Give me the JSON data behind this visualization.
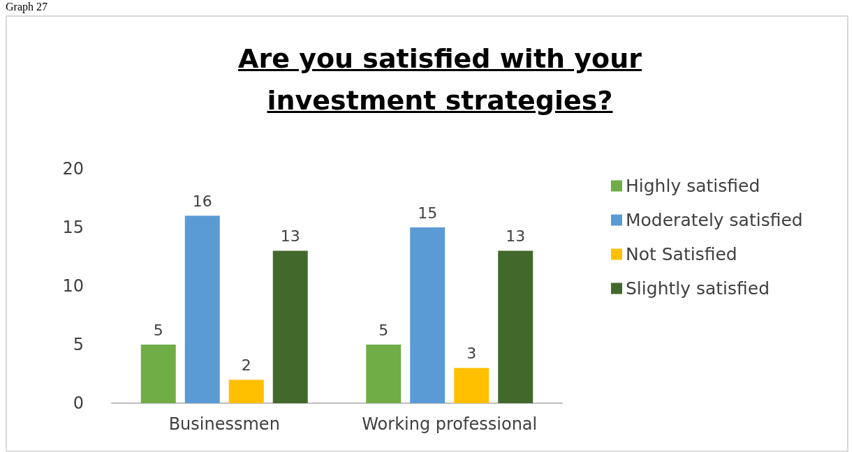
{
  "chart_data": {
    "type": "bar",
    "title": "Are you satisfied with your investment strategies?",
    "annotations": [
      "Graph 27"
    ],
    "categories": [
      "Businessmen",
      "Working professional"
    ],
    "series": [
      {
        "name": "Highly satisfied",
        "color": "#70ad47",
        "values": [
          5,
          5
        ]
      },
      {
        "name": "Moderately satisfied",
        "color": "#5b9bd5",
        "values": [
          16,
          15
        ]
      },
      {
        "name": "Not Satisfied",
        "color": "#ffc000",
        "values": [
          2,
          3
        ]
      },
      {
        "name": "Slightly satisfied",
        "color": "#43682b",
        "values": [
          13,
          13
        ]
      }
    ],
    "ylim": [
      0,
      20
    ],
    "yticks": [
      0,
      5,
      10,
      15,
      20
    ],
    "grid": false,
    "legend": "right",
    "data_labels": true
  }
}
